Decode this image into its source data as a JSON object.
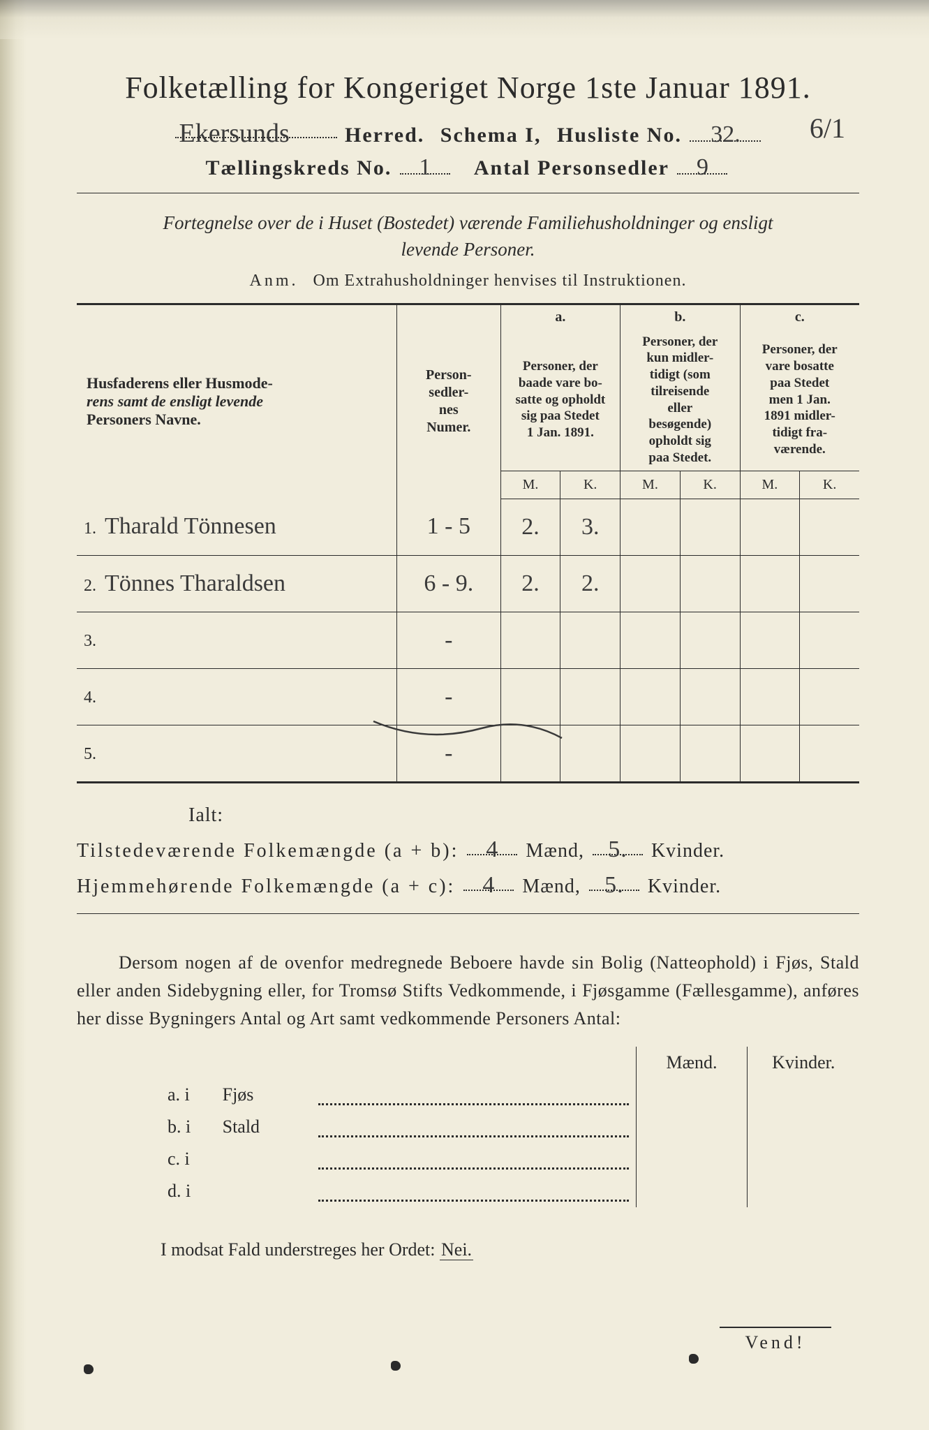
{
  "colors": {
    "paper": "#f1eddd",
    "ink": "#2b2b2b",
    "handwriting": "#3a3a3a",
    "shadow": "#c7c2a8"
  },
  "title": "Folketælling for Kongeriget Norge 1ste Januar 1891.",
  "line2": {
    "herred_hw": "Ekersunds",
    "herred_label": "Herred.",
    "schema_label": "Schema I,",
    "husliste_label": "Husliste No.",
    "husliste_hw": "32."
  },
  "annotation_top_right": "6/1",
  "line3": {
    "kreds_label": "Tællingskreds No.",
    "kreds_hw": "1",
    "antal_label": "Antal Personsedler",
    "antal_hw": "9"
  },
  "subheading_l1": "Fortegnelse over de i Huset (Bostedet) værende Familiehusholdninger og ensligt",
  "subheading_l2": "levende Personer.",
  "anm_prefix": "Anm.",
  "anm_text": "Om Extrahusholdninger henvises til Instruktionen.",
  "table": {
    "col_names_l1": "Husfaderens eller Husmode-",
    "col_names_l2": "rens samt de ensligt levende",
    "col_names_l3": "Personers Navne.",
    "col_num_l1": "Person-",
    "col_num_l2": "sedler-",
    "col_num_l3": "nes",
    "col_num_l4": "Numer.",
    "hdr_a": "a.",
    "col_a_l1": "Personer, der",
    "col_a_l2": "baade vare bo-",
    "col_a_l3": "satte og opholdt",
    "col_a_l4": "sig paa Stedet",
    "col_a_l5": "1 Jan. 1891.",
    "hdr_b": "b.",
    "col_b_l1": "Personer, der",
    "col_b_l2": "kun midler-",
    "col_b_l3": "tidigt (som",
    "col_b_l4": "tilreisende",
    "col_b_l5": "eller",
    "col_b_l6": "besøgende)",
    "col_b_l7": "opholdt sig",
    "col_b_l8": "paa Stedet.",
    "hdr_c": "c.",
    "col_c_l1": "Personer, der",
    "col_c_l2": "vare bosatte",
    "col_c_l3": "paa Stedet",
    "col_c_l4": "men 1 Jan.",
    "col_c_l5": "1891 midler-",
    "col_c_l6": "tidigt fra-",
    "col_c_l7": "værende.",
    "M": "M.",
    "K": "K.",
    "rows": [
      {
        "num": "1.",
        "name": "Tharald Tönnesen",
        "sedler": "1 - 5",
        "aM": "2.",
        "aK": "3.",
        "bM": "",
        "bK": "",
        "cM": "",
        "cK": ""
      },
      {
        "num": "2.",
        "name": "Tönnes Tharaldsen",
        "sedler": "6 - 9.",
        "aM": "2.",
        "aK": "2.",
        "bM": "",
        "bK": "",
        "cM": "",
        "cK": ""
      },
      {
        "num": "3.",
        "name": "",
        "sedler": "-",
        "aM": "",
        "aK": "",
        "bM": "",
        "bK": "",
        "cM": "",
        "cK": ""
      },
      {
        "num": "4.",
        "name": "",
        "sedler": "-",
        "aM": "",
        "aK": "",
        "bM": "",
        "bK": "",
        "cM": "",
        "cK": ""
      },
      {
        "num": "5.",
        "name": "",
        "sedler": "-",
        "aM": "",
        "aK": "",
        "bM": "",
        "bK": "",
        "cM": "",
        "cK": ""
      }
    ]
  },
  "ialt": "Ialt:",
  "tot1": {
    "prefix": "Tilstedeværende Folkemængde (a + b):",
    "m_hw": "4",
    "m_label": "Mænd,",
    "k_hw": "5.",
    "k_label": "Kvinder."
  },
  "tot2": {
    "prefix": "Hjemmehørende Folkemængde (a + c):",
    "m_hw": "4",
    "m_label": "Mænd,",
    "k_hw": "5.",
    "k_label": "Kvinder."
  },
  "para": "Dersom nogen af de ovenfor medregnede Beboere havde sin Bolig (Natte­ophold) i Fjøs, Stald eller anden Sidebygning eller, for Tromsø Stifts Ved­kommende, i Fjøsgamme (Fællesgamme), anføres her disse Bygningers Antal og Art samt vedkommende Personers Antal:",
  "building": {
    "hdr_m": "Mænd.",
    "hdr_k": "Kvinder.",
    "rows": [
      {
        "label": "a.  i",
        "kind": "Fjøs"
      },
      {
        "label": "b.  i",
        "kind": "Stald"
      },
      {
        "label": "c.  i",
        "kind": ""
      },
      {
        "label": "d.  i",
        "kind": ""
      }
    ]
  },
  "nei_line_pre": "I modsat Fald understreges her Ordet: ",
  "nei_word": "Nei.",
  "vend": "Vend!"
}
